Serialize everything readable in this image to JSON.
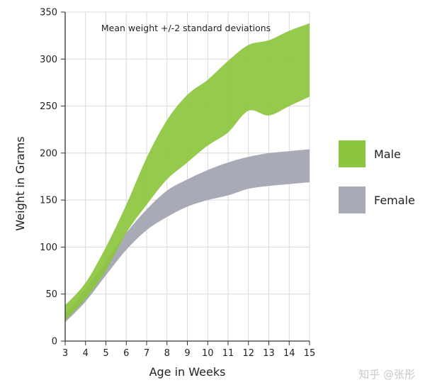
{
  "chart_data": {
    "type": "area",
    "title": "Mean weight +/-2 standard deviations",
    "xlabel": "Age in Weeks",
    "ylabel": "Weight in Grams",
    "xlim": [
      3,
      15
    ],
    "ylim": [
      0,
      350
    ],
    "x_ticks": [
      3,
      4,
      5,
      6,
      7,
      8,
      9,
      10,
      11,
      12,
      13,
      14,
      15
    ],
    "y_ticks": [
      0,
      50,
      100,
      150,
      200,
      250,
      300,
      350
    ],
    "grid": true,
    "legend_position": "right",
    "x": [
      3,
      4,
      5,
      6,
      7,
      8,
      9,
      10,
      11,
      12,
      13,
      14,
      15
    ],
    "series": [
      {
        "name": "Male",
        "color": "#8cc63e",
        "upper": [
          38,
          62,
          100,
          145,
          195,
          235,
          262,
          278,
          298,
          315,
          320,
          330,
          338
        ],
        "lower": [
          22,
          45,
          75,
          115,
          145,
          172,
          190,
          208,
          222,
          245,
          240,
          250,
          260
        ]
      },
      {
        "name": "Female",
        "color": "#a8aab6",
        "upper": [
          30,
          55,
          85,
          115,
          140,
          160,
          172,
          182,
          190,
          196,
          200,
          202,
          204
        ],
        "lower": [
          20,
          42,
          70,
          97,
          118,
          132,
          143,
          150,
          155,
          162,
          165,
          167,
          169
        ]
      }
    ]
  },
  "watermark": "知乎 @张彤"
}
